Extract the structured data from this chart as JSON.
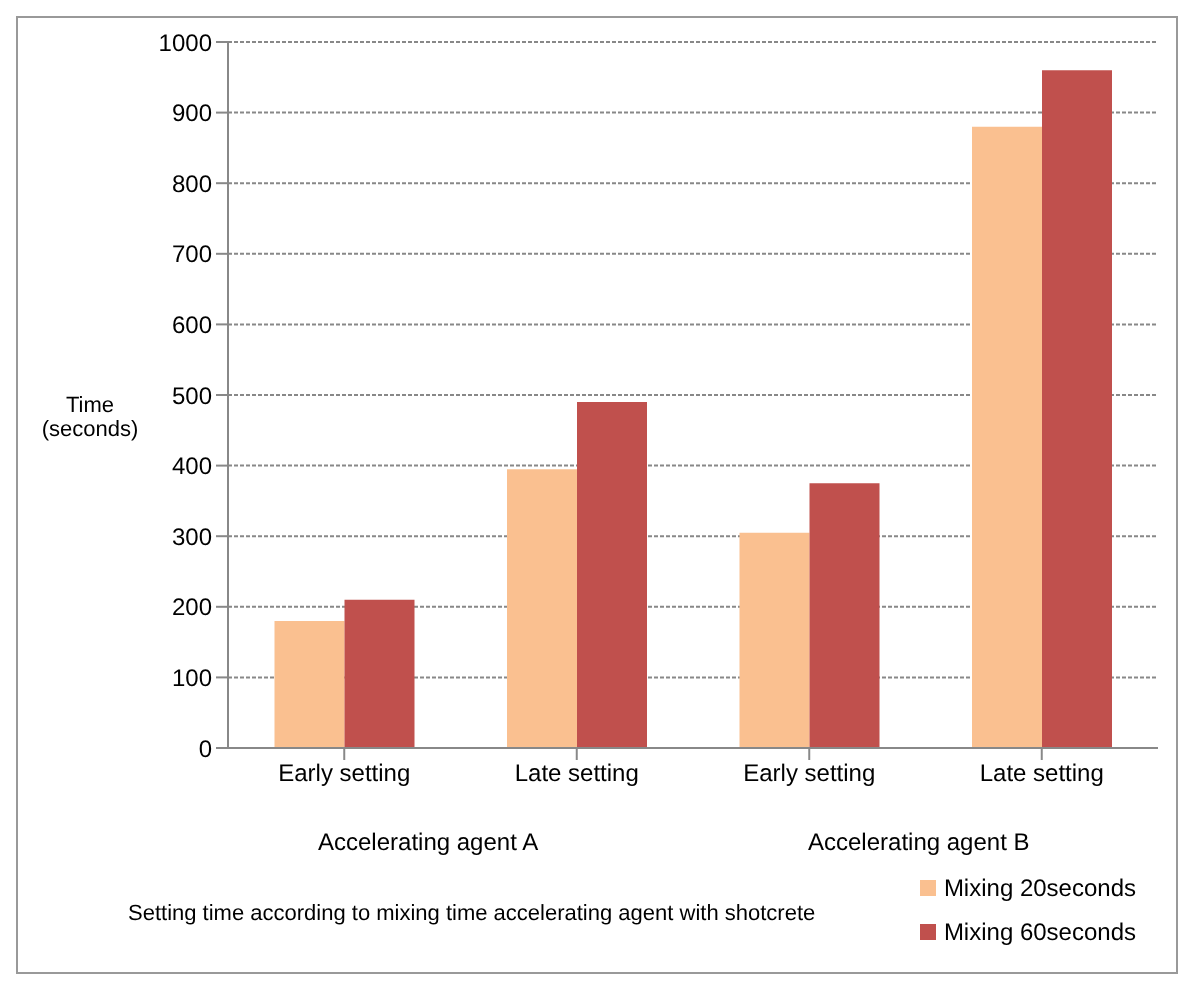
{
  "chart_data": {
    "type": "bar",
    "ylabel": "Time (seconds)",
    "categories": [
      "Early setting",
      "Late setting",
      "Early setting",
      "Late setting"
    ],
    "series": [
      {
        "name": "Mixing 20seconds",
        "color": "#fac090",
        "values": [
          180,
          395,
          305,
          880
        ]
      },
      {
        "name": "Mixing 60seconds",
        "color": "#c0504d",
        "values": [
          210,
          490,
          375,
          960
        ]
      }
    ],
    "ylim": [
      0,
      1000
    ],
    "yticks": [
      0,
      100,
      200,
      300,
      400,
      500,
      600,
      700,
      800,
      900,
      1000
    ],
    "grid": "y",
    "legend": "bottom right",
    "annotations": [
      "Accelerating agent A",
      "Accelerating agent B",
      "Setting time according to mixing time accelerating agent with shotcrete"
    ]
  }
}
